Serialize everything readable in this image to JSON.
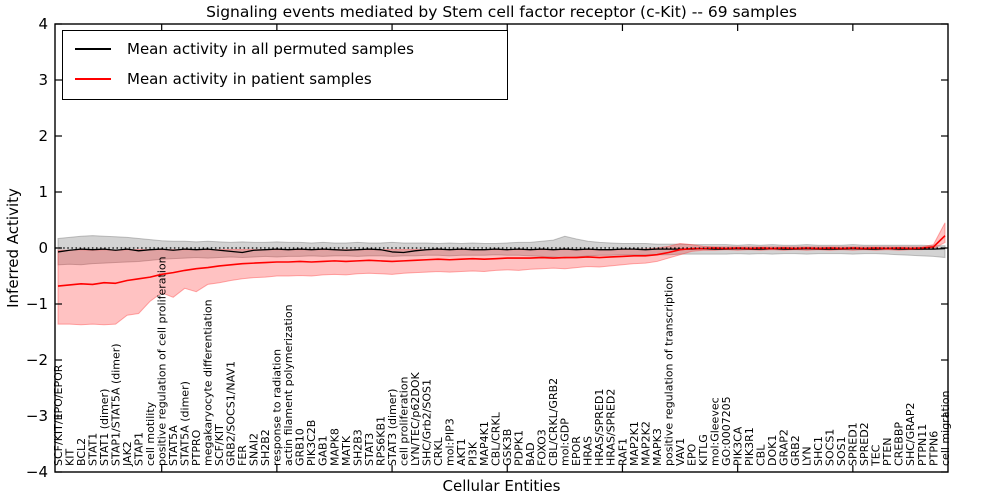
{
  "chart_data": {
    "type": "line",
    "title": "Signaling events mediated by Stem cell factor receptor (c-Kit) -- 69 samples",
    "xlabel": "Cellular Entities",
    "ylabel": "Inferred Activity",
    "ylim": [
      -4,
      4
    ],
    "yticks": [
      -4,
      -3,
      -2,
      -1,
      0,
      1,
      2,
      3,
      4
    ],
    "grid": false,
    "legend_position": "upper left",
    "zero_reference_line": 0,
    "categories": [
      "SCF/KIT/EPO/EPOR",
      "KIT",
      "BCL2",
      "STAT1",
      "STAT1 (dimer)",
      "STAP1/STAT5A (dimer)",
      "JAK2",
      "STAP1",
      "cell motility",
      "positive regulation of cell proliferation",
      "STAT5A",
      "STAT5A (dimer)",
      "PTPRO",
      "megakaryocyte differentiation",
      "SCF/KIT",
      "GRB2/SOCS1/NAV1",
      "FER",
      "SNAI2",
      "SH2B2",
      "response to radiation",
      "actin filament polymerization",
      "GRB10",
      "PIK3C2B",
      "GAB1",
      "MAPK8",
      "MATK",
      "SH2B3",
      "STAT3",
      "RPS6KB1",
      "STAT3 (dimer)",
      "cell proliferation",
      "LYN/TEC/p62DOK",
      "SHC/Grb2/SOS1",
      "CRKL",
      "mol:PIP3",
      "AKT1",
      "PI3K",
      "MAP4K1",
      "CBL/CRKL",
      "GSK3B",
      "PDPK1",
      "BAD",
      "FOXO3",
      "CBL/CRKL/GRB2",
      "mol:GDP",
      "EPOR",
      "HRAS",
      "HRAS/SPRED1",
      "HRAS/SPRED2",
      "RAF1",
      "MAP2K1",
      "MAP2K2",
      "MAPK3",
      "positive regulation of transcription",
      "VAV1",
      "EPO",
      "KITLG",
      "mol:Gleevec",
      "GO:0007205",
      "PIK3CA",
      "PIK3R1",
      "CBL",
      "DOK1",
      "GRAP2",
      "GRB2",
      "LYN",
      "SHC1",
      "SOCS1",
      "SOS1",
      "SPRED1",
      "SPRED2",
      "TEC",
      "PTEN",
      "CREBBP",
      "SHC/GRAP2",
      "PTPN11",
      "PTPN6",
      "cell migration"
    ],
    "series": [
      {
        "name": "Mean activity in all permuted samples",
        "color": "#000000",
        "values": [
          -0.07,
          -0.04,
          -0.02,
          -0.03,
          -0.02,
          -0.04,
          -0.02,
          -0.05,
          -0.03,
          -0.02,
          -0.04,
          -0.02,
          -0.03,
          -0.02,
          -0.04,
          -0.06,
          -0.08,
          -0.04,
          -0.03,
          -0.02,
          -0.03,
          -0.02,
          -0.03,
          -0.02,
          -0.03,
          -0.04,
          -0.03,
          -0.02,
          -0.03,
          -0.07,
          -0.08,
          -0.05,
          -0.03,
          -0.02,
          -0.03,
          -0.02,
          -0.03,
          -0.03,
          -0.02,
          -0.03,
          -0.02,
          -0.03,
          -0.02,
          -0.03,
          -0.02,
          -0.03,
          -0.02,
          -0.03,
          -0.03,
          -0.02,
          -0.02,
          -0.03,
          -0.02,
          -0.02,
          -0.02,
          -0.02,
          -0.01,
          -0.02,
          -0.02,
          -0.01,
          -0.02,
          -0.02,
          -0.01,
          -0.02,
          -0.02,
          -0.01,
          -0.02,
          -0.02,
          -0.02,
          -0.01,
          -0.02,
          -0.02,
          -0.01,
          -0.02,
          -0.02,
          -0.02,
          -0.02,
          -0.01
        ],
        "band_upper": [
          0.17,
          0.19,
          0.21,
          0.22,
          0.21,
          0.2,
          0.19,
          0.17,
          0.15,
          0.13,
          0.12,
          0.12,
          0.11,
          0.12,
          0.11,
          0.1,
          0.11,
          0.1,
          0.1,
          0.11,
          0.1,
          0.1,
          0.09,
          0.1,
          0.09,
          0.09,
          0.1,
          0.09,
          0.09,
          0.1,
          0.09,
          0.09,
          0.09,
          0.08,
          0.09,
          0.08,
          0.09,
          0.08,
          0.08,
          0.09,
          0.1,
          0.1,
          0.12,
          0.14,
          0.21,
          0.16,
          0.12,
          0.1,
          0.09,
          0.08,
          0.08,
          0.08,
          0.07,
          0.07,
          0.07,
          0.06,
          0.06,
          0.06,
          0.06,
          0.05,
          0.06,
          0.05,
          0.06,
          0.05,
          0.05,
          0.06,
          0.05,
          0.05,
          0.05,
          0.06,
          0.05,
          0.05,
          0.05,
          0.05,
          0.05,
          0.05,
          0.04,
          0.04
        ],
        "band_lower": [
          -0.3,
          -0.29,
          -0.3,
          -0.28,
          -0.27,
          -0.26,
          -0.25,
          -0.24,
          -0.22,
          -0.2,
          -0.19,
          -0.18,
          -0.17,
          -0.18,
          -0.17,
          -0.16,
          -0.17,
          -0.16,
          -0.15,
          -0.16,
          -0.15,
          -0.15,
          -0.14,
          -0.15,
          -0.14,
          -0.14,
          -0.15,
          -0.14,
          -0.14,
          -0.15,
          -0.14,
          -0.14,
          -0.13,
          -0.13,
          -0.14,
          -0.13,
          -0.13,
          -0.13,
          -0.12,
          -0.13,
          -0.13,
          -0.14,
          -0.15,
          -0.16,
          -0.18,
          -0.16,
          -0.14,
          -0.13,
          -0.13,
          -0.12,
          -0.12,
          -0.12,
          -0.12,
          -0.12,
          -0.11,
          -0.11,
          -0.11,
          -0.11,
          -0.11,
          -0.1,
          -0.11,
          -0.1,
          -0.11,
          -0.1,
          -0.1,
          -0.11,
          -0.1,
          -0.1,
          -0.1,
          -0.11,
          -0.1,
          -0.1,
          -0.11,
          -0.12,
          -0.13,
          -0.14,
          -0.15,
          -0.17
        ],
        "band_fill": "rgba(110,110,110,0.30)",
        "band_edge": "rgba(110,110,110,0.40)"
      },
      {
        "name": "Mean activity in patient samples",
        "color": "#ff0000",
        "values": [
          -0.68,
          -0.66,
          -0.64,
          -0.65,
          -0.62,
          -0.63,
          -0.58,
          -0.55,
          -0.52,
          -0.47,
          -0.44,
          -0.4,
          -0.37,
          -0.35,
          -0.32,
          -0.3,
          -0.28,
          -0.27,
          -0.26,
          -0.25,
          -0.25,
          -0.24,
          -0.25,
          -0.24,
          -0.23,
          -0.24,
          -0.23,
          -0.22,
          -0.23,
          -0.24,
          -0.23,
          -0.22,
          -0.21,
          -0.2,
          -0.21,
          -0.2,
          -0.19,
          -0.2,
          -0.19,
          -0.18,
          -0.18,
          -0.18,
          -0.17,
          -0.18,
          -0.17,
          -0.17,
          -0.16,
          -0.17,
          -0.16,
          -0.15,
          -0.14,
          -0.14,
          -0.12,
          -0.08,
          -0.03,
          -0.01,
          -0.01,
          0.0,
          -0.01,
          0.0,
          -0.01,
          0.0,
          -0.01,
          0.0,
          -0.01,
          0.0,
          -0.01,
          0.0,
          -0.01,
          0.0,
          -0.01,
          0.0,
          -0.01,
          0.0,
          -0.01,
          0.0,
          0.02,
          0.22
        ],
        "band_upper": [
          -0.04,
          -0.04,
          -0.03,
          -0.04,
          -0.03,
          -0.04,
          -0.03,
          -0.03,
          -0.03,
          -0.03,
          -0.03,
          -0.03,
          -0.03,
          -0.03,
          -0.03,
          -0.03,
          -0.03,
          -0.03,
          -0.03,
          -0.03,
          -0.03,
          -0.03,
          -0.03,
          -0.03,
          -0.03,
          -0.03,
          -0.03,
          -0.03,
          -0.03,
          -0.03,
          -0.03,
          -0.03,
          -0.03,
          -0.03,
          -0.03,
          -0.03,
          -0.03,
          -0.03,
          -0.03,
          -0.03,
          -0.03,
          -0.03,
          -0.03,
          -0.03,
          -0.03,
          -0.03,
          -0.03,
          -0.03,
          -0.03,
          -0.03,
          -0.02,
          -0.02,
          0.0,
          0.03,
          0.08,
          0.06,
          0.03,
          0.02,
          0.02,
          0.02,
          0.02,
          0.02,
          0.02,
          0.02,
          0.02,
          0.02,
          0.02,
          0.02,
          0.02,
          0.02,
          0.02,
          0.02,
          0.02,
          0.02,
          0.02,
          0.02,
          0.06,
          0.45
        ],
        "band_lower": [
          -1.36,
          -1.36,
          -1.37,
          -1.36,
          -1.37,
          -1.36,
          -1.2,
          -1.17,
          -0.95,
          -0.8,
          -0.88,
          -0.72,
          -0.78,
          -0.65,
          -0.62,
          -0.58,
          -0.55,
          -0.53,
          -0.52,
          -0.5,
          -0.5,
          -0.49,
          -0.5,
          -0.48,
          -0.47,
          -0.48,
          -0.46,
          -0.45,
          -0.46,
          -0.47,
          -0.45,
          -0.44,
          -0.43,
          -0.42,
          -0.43,
          -0.42,
          -0.41,
          -0.42,
          -0.4,
          -0.39,
          -0.4,
          -0.38,
          -0.37,
          -0.36,
          -0.37,
          -0.35,
          -0.33,
          -0.34,
          -0.32,
          -0.3,
          -0.28,
          -0.27,
          -0.24,
          -0.18,
          -0.12,
          -0.06,
          -0.04,
          -0.04,
          -0.03,
          -0.04,
          -0.03,
          -0.04,
          -0.03,
          -0.04,
          -0.03,
          -0.04,
          -0.03,
          -0.04,
          -0.03,
          -0.04,
          -0.03,
          -0.04,
          -0.03,
          -0.04,
          -0.03,
          -0.03,
          -0.01,
          0.1
        ],
        "band_fill": "rgba(255,35,35,0.28)",
        "band_edge": "rgba(255,70,70,0.45)"
      }
    ]
  }
}
